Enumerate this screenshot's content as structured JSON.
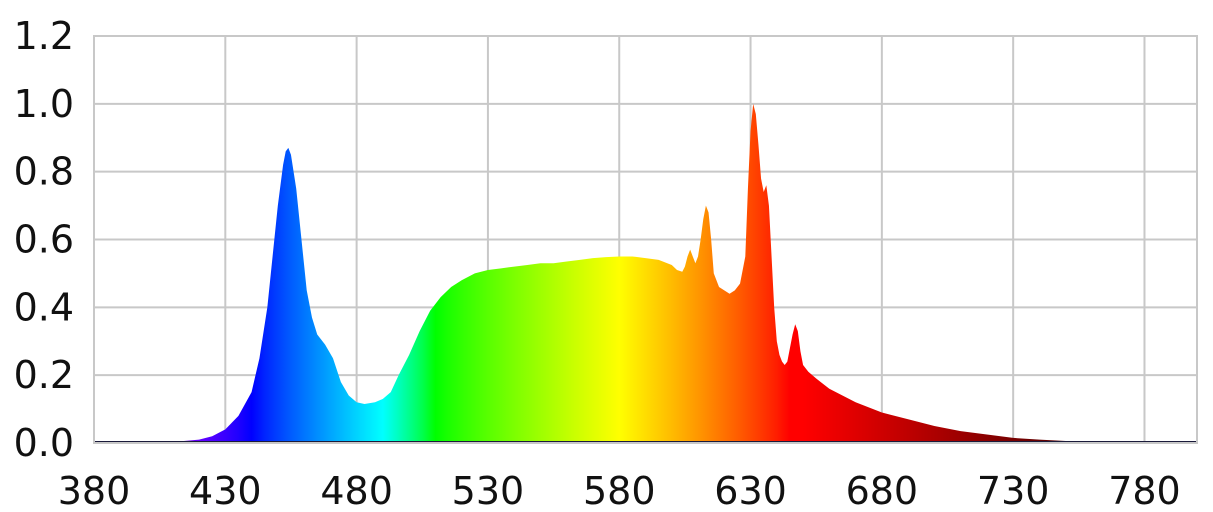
{
  "chart_data": {
    "type": "area",
    "title": "",
    "xlabel": "",
    "ylabel": "",
    "xlim": [
      380,
      800
    ],
    "ylim": [
      0.0,
      1.2
    ],
    "grid": true,
    "legend": "none",
    "x_ticks": [
      "380",
      "430",
      "480",
      "530",
      "580",
      "630",
      "680",
      "730",
      "780"
    ],
    "y_ticks": [
      "0.0",
      "0.2",
      "0.4",
      "0.6",
      "0.8",
      "1.0",
      "1.2"
    ],
    "fill": "visible-spectrum gradient (blue to red by wavelength)",
    "series": [
      {
        "x": [
          380,
          400,
          410,
          420,
          425,
          430,
          435,
          440,
          443,
          446,
          448,
          450,
          452,
          453,
          454,
          455,
          457,
          459,
          461,
          463,
          465,
          468,
          471,
          474,
          477,
          480,
          483,
          487,
          490,
          493,
          496,
          500,
          504,
          508,
          512,
          516,
          520,
          525,
          530,
          535,
          540,
          545,
          550,
          555,
          560,
          565,
          570,
          575,
          580,
          585,
          590,
          595,
          600,
          602,
          604,
          605,
          606,
          607,
          608,
          609,
          610,
          611,
          612,
          613,
          614,
          615,
          616,
          618,
          620,
          622,
          624,
          626,
          628,
          629,
          630,
          631,
          632,
          633,
          634,
          635,
          636,
          637,
          638,
          639,
          640,
          641,
          642,
          643,
          644,
          645,
          646,
          647,
          648,
          649,
          650,
          652,
          655,
          660,
          665,
          670,
          680,
          690,
          700,
          710,
          720,
          730,
          740,
          750,
          760,
          770,
          780,
          790,
          800
        ],
        "values": [
          0.0,
          0.0,
          0.003,
          0.01,
          0.02,
          0.04,
          0.08,
          0.15,
          0.25,
          0.4,
          0.55,
          0.7,
          0.82,
          0.86,
          0.87,
          0.85,
          0.75,
          0.6,
          0.45,
          0.37,
          0.32,
          0.29,
          0.25,
          0.18,
          0.14,
          0.12,
          0.115,
          0.12,
          0.13,
          0.15,
          0.2,
          0.26,
          0.33,
          0.39,
          0.43,
          0.46,
          0.48,
          0.5,
          0.51,
          0.515,
          0.52,
          0.525,
          0.53,
          0.53,
          0.535,
          0.54,
          0.545,
          0.548,
          0.55,
          0.55,
          0.545,
          0.54,
          0.525,
          0.51,
          0.505,
          0.52,
          0.55,
          0.57,
          0.55,
          0.53,
          0.55,
          0.6,
          0.66,
          0.7,
          0.68,
          0.6,
          0.5,
          0.46,
          0.45,
          0.44,
          0.45,
          0.47,
          0.55,
          0.75,
          0.92,
          1.0,
          0.97,
          0.88,
          0.78,
          0.74,
          0.76,
          0.7,
          0.55,
          0.4,
          0.3,
          0.26,
          0.24,
          0.23,
          0.24,
          0.28,
          0.32,
          0.35,
          0.33,
          0.27,
          0.23,
          0.21,
          0.19,
          0.16,
          0.14,
          0.12,
          0.09,
          0.07,
          0.05,
          0.035,
          0.025,
          0.015,
          0.01,
          0.006,
          0.004,
          0.003,
          0.003,
          0.002,
          0.002
        ]
      }
    ]
  }
}
